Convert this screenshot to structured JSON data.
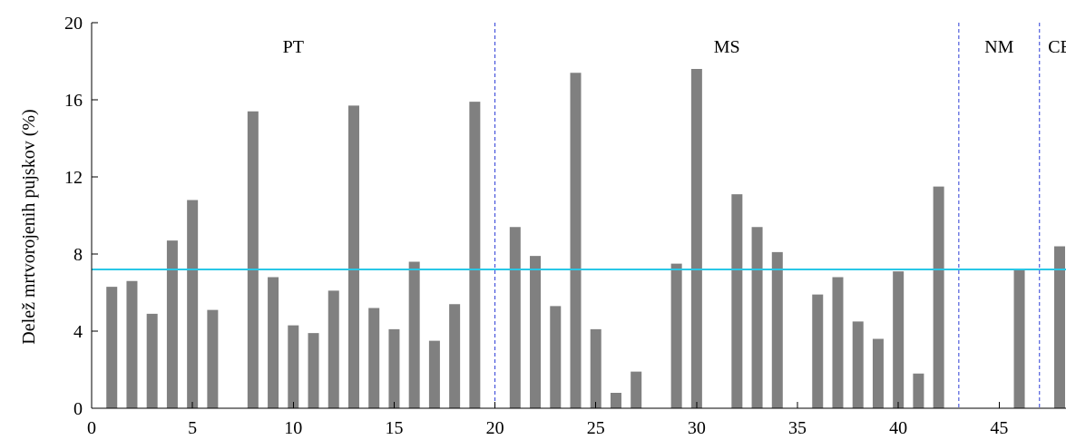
{
  "chart_data": {
    "type": "bar",
    "title": "",
    "xlabel": "",
    "ylabel": "Delež mrtvorojenih pujskov (%)",
    "xlim": [
      0,
      48
    ],
    "ylim": [
      0,
      20
    ],
    "xticks": [
      0,
      5,
      10,
      15,
      20,
      25,
      30,
      35,
      40,
      45
    ],
    "yticks": [
      0,
      4,
      8,
      12,
      16,
      20
    ],
    "grid": false,
    "legend": "none",
    "bar_color": "#808080",
    "series": [
      {
        "points": [
          {
            "x": 1,
            "y": 6.3
          },
          {
            "x": 2,
            "y": 6.6
          },
          {
            "x": 3,
            "y": 4.9
          },
          {
            "x": 4,
            "y": 8.7
          },
          {
            "x": 5,
            "y": 10.8
          },
          {
            "x": 6,
            "y": 5.1
          },
          {
            "x": 8,
            "y": 15.4
          },
          {
            "x": 9,
            "y": 6.8
          },
          {
            "x": 10,
            "y": 4.3
          },
          {
            "x": 11,
            "y": 3.9
          },
          {
            "x": 12,
            "y": 6.1
          },
          {
            "x": 13,
            "y": 15.7
          },
          {
            "x": 14,
            "y": 5.2
          },
          {
            "x": 15,
            "y": 4.1
          },
          {
            "x": 16,
            "y": 7.6
          },
          {
            "x": 17,
            "y": 3.5
          },
          {
            "x": 18,
            "y": 5.4
          },
          {
            "x": 19,
            "y": 15.9
          },
          {
            "x": 21,
            "y": 9.4
          },
          {
            "x": 22,
            "y": 7.9
          },
          {
            "x": 23,
            "y": 5.3
          },
          {
            "x": 24,
            "y": 17.4
          },
          {
            "x": 25,
            "y": 4.1
          },
          {
            "x": 26,
            "y": 0.8
          },
          {
            "x": 27,
            "y": 1.9
          },
          {
            "x": 29,
            "y": 7.5
          },
          {
            "x": 30,
            "y": 17.6
          },
          {
            "x": 32,
            "y": 11.1
          },
          {
            "x": 33,
            "y": 9.4
          },
          {
            "x": 34,
            "y": 8.1
          },
          {
            "x": 36,
            "y": 5.9
          },
          {
            "x": 37,
            "y": 6.8
          },
          {
            "x": 38,
            "y": 4.5
          },
          {
            "x": 39,
            "y": 3.6
          },
          {
            "x": 40,
            "y": 7.1
          },
          {
            "x": 41,
            "y": 1.8
          },
          {
            "x": 42,
            "y": 11.5
          },
          {
            "x": 46,
            "y": 7.2
          },
          {
            "x": 48,
            "y": 8.4
          }
        ]
      }
    ],
    "reference_line": {
      "y": 7.2,
      "color": "#29c7e6"
    },
    "group_dividers": {
      "x": [
        20,
        43,
        47
      ],
      "color": "#2a3bd6",
      "style": "dashed"
    },
    "group_labels": [
      {
        "text": "PT",
        "x": 10
      },
      {
        "text": "MS",
        "x": 31.5
      },
      {
        "text": "NM",
        "x": 45
      },
      {
        "text": "CE",
        "x": 48
      }
    ]
  }
}
